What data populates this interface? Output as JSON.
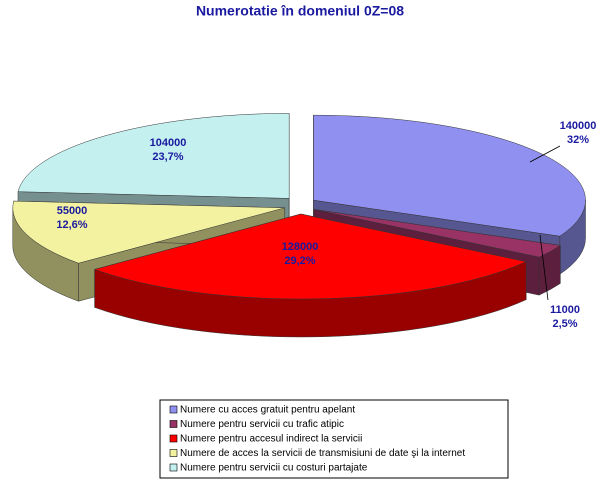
{
  "chart_data": {
    "type": "pie3d",
    "title": "Numerotatie în domeniul 0Z=08",
    "categories": [
      "Numere cu acces gratuit pentru apelant",
      "Numere pentru servicii cu trafic atipic",
      "Numere pentru accesul indirect la servicii",
      "Numere de acces la servicii de transmisiuni  de date şi la internet",
      "Numere pentru servicii cu costuri partajate"
    ],
    "values": [
      140000,
      11000,
      128000,
      55000,
      104000
    ],
    "percent_labels": [
      "32%",
      "2,5%",
      "29,2%",
      "12,6%",
      "23,7%"
    ],
    "colors": [
      "#9090f0",
      "#993366",
      "#ff0000",
      "#f2f2a0",
      "#c4f0f0"
    ],
    "legend": "bottom"
  }
}
